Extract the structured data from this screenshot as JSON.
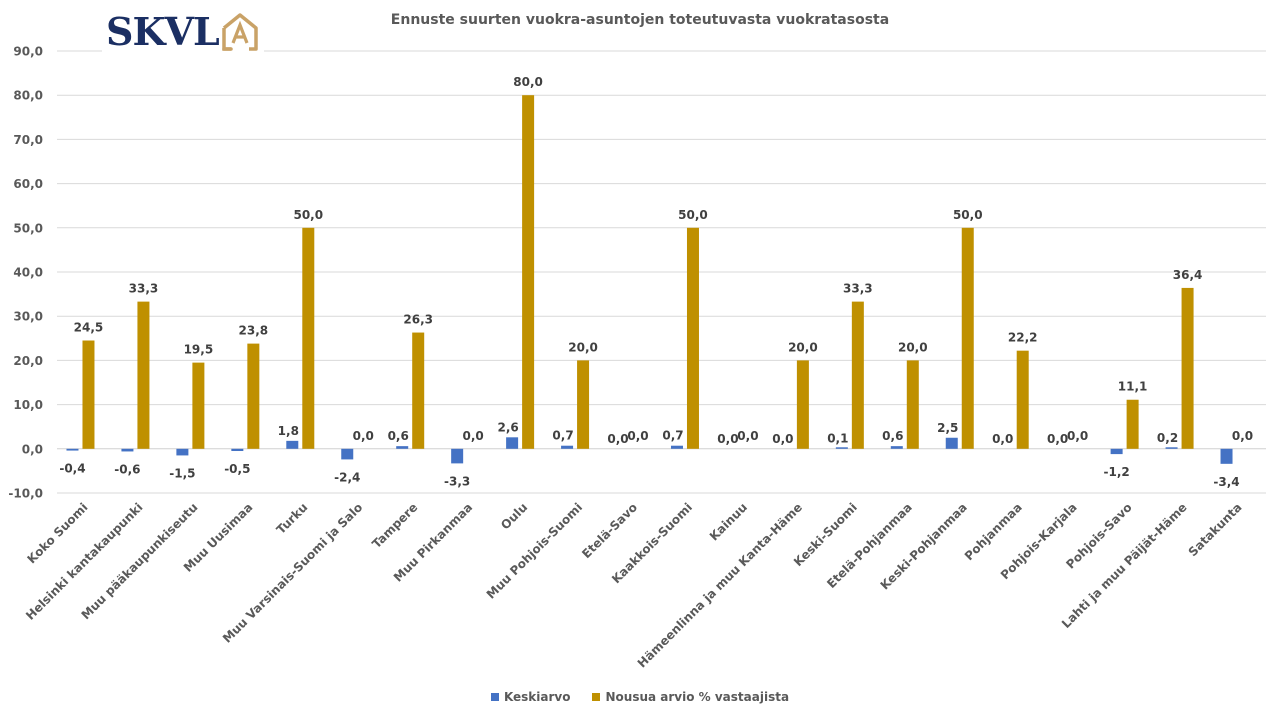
{
  "logo": {
    "text": "SKVL",
    "mark": "A",
    "brand_color": "#1b2f63",
    "mark_color": "#c9a267"
  },
  "chart_data": {
    "type": "bar",
    "title": "Ennuste suurten vuokra-asuntojen toteutuvasta vuokratasosta",
    "xlabel": "",
    "ylabel": "",
    "ylim": [
      -10,
      90
    ],
    "yticks": [
      -10,
      0,
      10,
      20,
      30,
      40,
      50,
      60,
      70,
      80,
      90
    ],
    "ytick_labels": [
      "-10,0",
      "0,0",
      "10,0",
      "20,0",
      "30,0",
      "40,0",
      "50,0",
      "60,0",
      "70,0",
      "80,0",
      "90,0"
    ],
    "grid": true,
    "legend_position": "bottom",
    "categories": [
      "Koko Suomi",
      "Helsinki kantakaupunki",
      "Muu pääkaupunkiseutu",
      "Muu Uusimaa",
      "Turku",
      "Muu Varsinais-Suomi ja Salo",
      "Tampere",
      "Muu Pirkanmaa",
      "Oulu",
      "Muu Pohjois-Suomi",
      "Etelä-Savo",
      "Kaakkois-Suomi",
      "Kainuu",
      "Hämeenlinna ja muu Kanta-Häme",
      "Keski-Suomi",
      "Etelä-Pohjanmaa",
      "Keski-Pohjanmaa",
      "Pohjanmaa",
      "Pohjois-Karjala",
      "Pohjois-Savo",
      "Lahti ja muu Päijät-Häme",
      "Satakunta"
    ],
    "series": [
      {
        "name": "Keskiarvo",
        "color": "#4472c4",
        "values": [
          -0.4,
          -0.6,
          -1.5,
          -0.5,
          1.8,
          -2.4,
          0.6,
          -3.3,
          2.6,
          0.7,
          0.0,
          0.7,
          0.0,
          0.0,
          0.1,
          0.6,
          2.5,
          0.0,
          0.0,
          -1.2,
          0.2,
          -3.4
        ],
        "labels": [
          "-0,4",
          "-0,6",
          "-1,5",
          "-0,5",
          "1,8",
          "-2,4",
          "0,6",
          "-3,3",
          "2,6",
          "0,7",
          "0,0",
          "0,7",
          "0,0",
          "0,0",
          "0,1",
          "0,6",
          "2,5",
          "0,0",
          "0,0",
          "-1,2",
          "0,2",
          "-3,4"
        ]
      },
      {
        "name": "Nousua arvio % vastaajista",
        "color": "#bf9000",
        "values": [
          24.5,
          33.3,
          19.5,
          23.8,
          50.0,
          0.0,
          26.3,
          0.0,
          80.0,
          20.0,
          0.0,
          50.0,
          0.0,
          20.0,
          33.3,
          20.0,
          50.0,
          22.2,
          0.0,
          11.1,
          36.4,
          0.0
        ],
        "labels": [
          "24,5",
          "33,3",
          "19,5",
          "23,8",
          "50,0",
          "0,0",
          "26,3",
          "0,0",
          "80,0",
          "20,0",
          "0,0",
          "50,0",
          "0,0",
          "20,0",
          "33,3",
          "20,0",
          "50,0",
          "22,2",
          "0,0",
          "11,1",
          "36,4",
          "0,0"
        ]
      }
    ]
  }
}
